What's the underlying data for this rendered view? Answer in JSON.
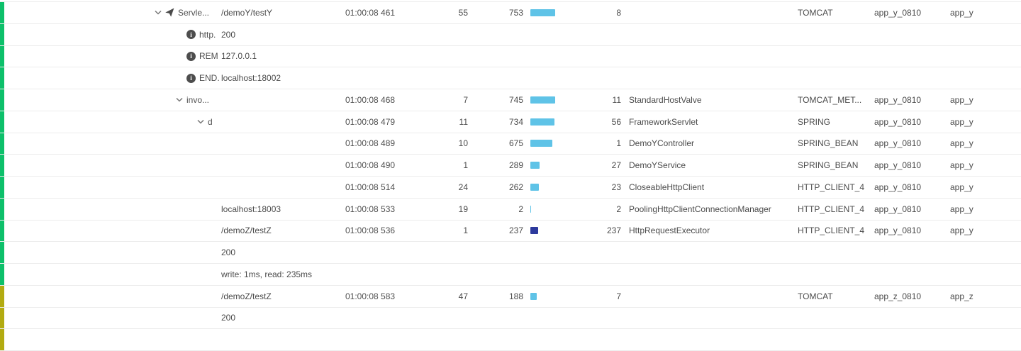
{
  "colors": {
    "green": "#0dc06a",
    "olive": "#b2ab11",
    "cyan": "#5fc3e7",
    "navy": "#2d3a9d"
  },
  "bar_scale": 0.0465,
  "rows": [
    {
      "strip": "green",
      "depth": 0,
      "icon": "chevron",
      "send": true,
      "label": "Servle...",
      "args": "/demoY/testY",
      "start": "01:00:08 461",
      "gap": "55",
      "exec": "753",
      "bar_ms": 753,
      "bar_color": "cyan",
      "self": "8",
      "cls": "",
      "api": "TOMCAT",
      "agent": "app_y_0810",
      "app": "app_y"
    },
    {
      "strip": "green",
      "depth": 1.5,
      "icon": "info",
      "send": false,
      "label": "http.",
      "args": "200",
      "start": "",
      "gap": "",
      "exec": "",
      "bar_ms": null,
      "bar_color": "",
      "self": "",
      "cls": "",
      "api": "",
      "agent": "",
      "app": ""
    },
    {
      "strip": "green",
      "depth": 1.5,
      "icon": "info",
      "send": false,
      "label": "REM",
      "args": "127.0.0.1",
      "start": "",
      "gap": "",
      "exec": "",
      "bar_ms": null,
      "bar_color": "",
      "self": "",
      "cls": "",
      "api": "",
      "agent": "",
      "app": ""
    },
    {
      "strip": "green",
      "depth": 1.5,
      "icon": "info",
      "send": false,
      "label": "END.",
      "args": "localhost:18002",
      "start": "",
      "gap": "",
      "exec": "",
      "bar_ms": null,
      "bar_color": "",
      "self": "",
      "cls": "",
      "api": "",
      "agent": "",
      "app": ""
    },
    {
      "strip": "green",
      "depth": 1,
      "icon": "chevron",
      "send": false,
      "label": "invo...",
      "args": "",
      "start": "01:00:08 468",
      "gap": "7",
      "exec": "745",
      "bar_ms": 745,
      "bar_color": "cyan",
      "self": "11",
      "cls": "StandardHostValve",
      "api": "TOMCAT_MET...",
      "agent": "app_y_0810",
      "app": "app_y"
    },
    {
      "strip": "green",
      "depth": 2,
      "icon": "chevron",
      "send": false,
      "label": "d",
      "args": "",
      "start": "01:00:08 479",
      "gap": "11",
      "exec": "734",
      "bar_ms": 734,
      "bar_color": "cyan",
      "self": "56",
      "cls": "FrameworkServlet",
      "api": "SPRING",
      "agent": "app_y_0810",
      "app": "app_y"
    },
    {
      "strip": "green",
      "depth": 0,
      "icon": "",
      "send": false,
      "label": "",
      "args": "",
      "start": "01:00:08 489",
      "gap": "10",
      "exec": "675",
      "bar_ms": 675,
      "bar_color": "cyan",
      "self": "1",
      "cls": "DemoYController",
      "api": "SPRING_BEAN",
      "agent": "app_y_0810",
      "app": "app_y"
    },
    {
      "strip": "green",
      "depth": 0,
      "icon": "",
      "send": false,
      "label": "",
      "args": "",
      "start": "01:00:08 490",
      "gap": "1",
      "exec": "289",
      "bar_ms": 289,
      "bar_color": "cyan",
      "self": "27",
      "cls": "DemoYService",
      "api": "SPRING_BEAN",
      "agent": "app_y_0810",
      "app": "app_y"
    },
    {
      "strip": "green",
      "depth": 0,
      "icon": "",
      "send": false,
      "label": "",
      "args": "",
      "start": "01:00:08 514",
      "gap": "24",
      "exec": "262",
      "bar_ms": 262,
      "bar_color": "cyan",
      "self": "23",
      "cls": "CloseableHttpClient",
      "api": "HTTP_CLIENT_4",
      "agent": "app_y_0810",
      "app": "app_y"
    },
    {
      "strip": "green",
      "depth": 0,
      "icon": "",
      "send": false,
      "label": "",
      "args": "localhost:18003",
      "start": "01:00:08 533",
      "gap": "19",
      "exec": "2",
      "bar_ms": 2,
      "bar_color": "cyan",
      "self": "2",
      "cls": "PoolingHttpClientConnectionManager",
      "api": "HTTP_CLIENT_4",
      "agent": "app_y_0810",
      "app": "app_y"
    },
    {
      "strip": "green",
      "depth": 0,
      "icon": "",
      "send": false,
      "label": "",
      "args": "/demoZ/testZ",
      "start": "01:00:08 536",
      "gap": "1",
      "exec": "237",
      "bar_ms": 237,
      "bar_color": "navy",
      "self": "237",
      "cls": "HttpRequestExecutor",
      "api": "HTTP_CLIENT_4",
      "agent": "app_y_0810",
      "app": "app_y"
    },
    {
      "strip": "green",
      "depth": 0,
      "icon": "",
      "send": false,
      "label": "",
      "args": "200",
      "start": "",
      "gap": "",
      "exec": "",
      "bar_ms": null,
      "bar_color": "",
      "self": "",
      "cls": "",
      "api": "",
      "agent": "",
      "app": ""
    },
    {
      "strip": "green",
      "depth": 0,
      "icon": "",
      "send": false,
      "label": "",
      "args": "write: 1ms, read: 235ms",
      "start": "",
      "gap": "",
      "exec": "",
      "bar_ms": null,
      "bar_color": "",
      "self": "",
      "cls": "",
      "api": "",
      "agent": "",
      "app": ""
    },
    {
      "strip": "olive",
      "depth": 0,
      "icon": "",
      "send": false,
      "label": "",
      "args": "/demoZ/testZ",
      "start": "01:00:08 583",
      "gap": "47",
      "exec": "188",
      "bar_ms": 188,
      "bar_color": "cyan",
      "self": "7",
      "cls": "",
      "api": "TOMCAT",
      "agent": "app_z_0810",
      "app": "app_z"
    },
    {
      "strip": "olive",
      "depth": 0,
      "icon": "",
      "send": false,
      "label": "",
      "args": "200",
      "start": "",
      "gap": "",
      "exec": "",
      "bar_ms": null,
      "bar_color": "",
      "self": "",
      "cls": "",
      "api": "",
      "agent": "",
      "app": ""
    },
    {
      "strip": "olive",
      "depth": 0,
      "icon": "",
      "send": false,
      "label": "",
      "args": "",
      "start": "",
      "gap": "",
      "exec": "",
      "bar_ms": null,
      "bar_color": "",
      "self": "",
      "cls": "",
      "api": "",
      "agent": "",
      "app": ""
    }
  ]
}
